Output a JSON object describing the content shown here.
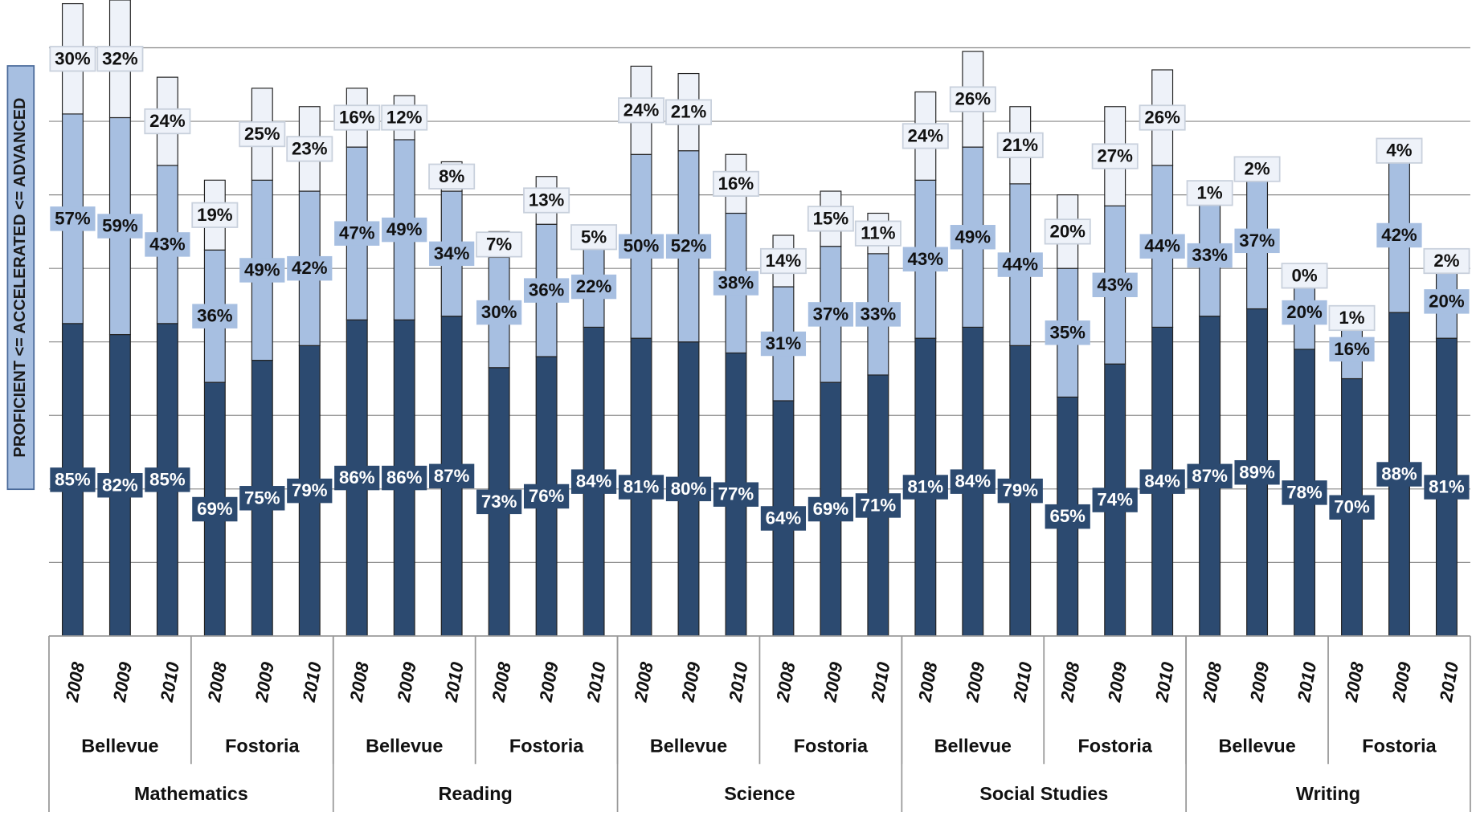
{
  "chart_data": {
    "type": "stacked-bar",
    "ylabel": "PROFICIENT <= ACCELERATED <= ADVANCED",
    "categories": [
      "2008",
      "2009",
      "2010",
      "2008",
      "2009",
      "2010",
      "2008",
      "2009",
      "2010",
      "2008",
      "2009",
      "2010",
      "2008",
      "2009",
      "2010",
      "2008",
      "2009",
      "2010",
      "2008",
      "2009",
      "2010",
      "2008",
      "2009",
      "2010",
      "2008",
      "2009",
      "2010",
      "2008",
      "2009",
      "2010"
    ],
    "schools": [
      "Bellevue",
      "Fostoria",
      "Bellevue",
      "Fostoria",
      "Bellevue",
      "Fostoria",
      "Bellevue",
      "Fostoria",
      "Bellevue",
      "Fostoria"
    ],
    "subjects": [
      "Mathematics",
      "Reading",
      "Science",
      "Social Studies",
      "Writing"
    ],
    "series": [
      {
        "color": "#2c4a70",
        "values": [
          85,
          82,
          85,
          69,
          75,
          79,
          86,
          86,
          87,
          73,
          76,
          84,
          81,
          80,
          77,
          64,
          69,
          71,
          81,
          84,
          79,
          65,
          74,
          84,
          87,
          89,
          78,
          70,
          88,
          81
        ],
        "value_labels": [
          "85%",
          "82%",
          "85%",
          "69%",
          "75%",
          "79%",
          "86%",
          "86%",
          "87%",
          "73%",
          "76%",
          "84%",
          "81%",
          "80%",
          "77%",
          "64%",
          "69%",
          "71%",
          "81%",
          "84%",
          "79%",
          "65%",
          "74%",
          "84%",
          "87%",
          "89%",
          "78%",
          "70%",
          "88%",
          "81%"
        ]
      },
      {
        "color": "#a7bfe1",
        "values": [
          57,
          59,
          43,
          36,
          49,
          42,
          47,
          49,
          34,
          30,
          36,
          22,
          50,
          52,
          38,
          31,
          37,
          33,
          43,
          49,
          44,
          35,
          43,
          44,
          33,
          37,
          20,
          16,
          42,
          20
        ],
        "value_labels": [
          "57%",
          "59%",
          "43%",
          "36%",
          "49%",
          "42%",
          "47%",
          "49%",
          "34%",
          "30%",
          "36%",
          "22%",
          "50%",
          "52%",
          "38%",
          "31%",
          "37%",
          "33%",
          "43%",
          "49%",
          "44%",
          "35%",
          "43%",
          "44%",
          "33%",
          "37%",
          "20%",
          "16%",
          "42%",
          "20%"
        ]
      },
      {
        "color": "#eef2f9",
        "values": [
          30,
          32,
          24,
          19,
          25,
          23,
          16,
          12,
          8,
          7,
          13,
          5,
          24,
          21,
          16,
          14,
          15,
          11,
          24,
          26,
          21,
          20,
          27,
          26,
          1,
          2,
          0,
          1,
          4,
          2
        ],
        "value_labels": [
          "30%",
          "32%",
          "24%",
          "19%",
          "25%",
          "23%",
          "16%",
          "12%",
          "8%",
          "7%",
          "13%",
          "5%",
          "24%",
          "21%",
          "16%",
          "14%",
          "15%",
          "11%",
          "24%",
          "26%",
          "21%",
          "20%",
          "27%",
          "26%",
          "1%",
          "2%",
          "0%",
          "1%",
          "4%",
          "2%"
        ]
      }
    ],
    "ylim": [
      0,
      173
    ],
    "yticks": [
      0,
      20,
      40,
      60,
      80,
      100,
      120,
      140,
      160
    ],
    "grid": true
  }
}
